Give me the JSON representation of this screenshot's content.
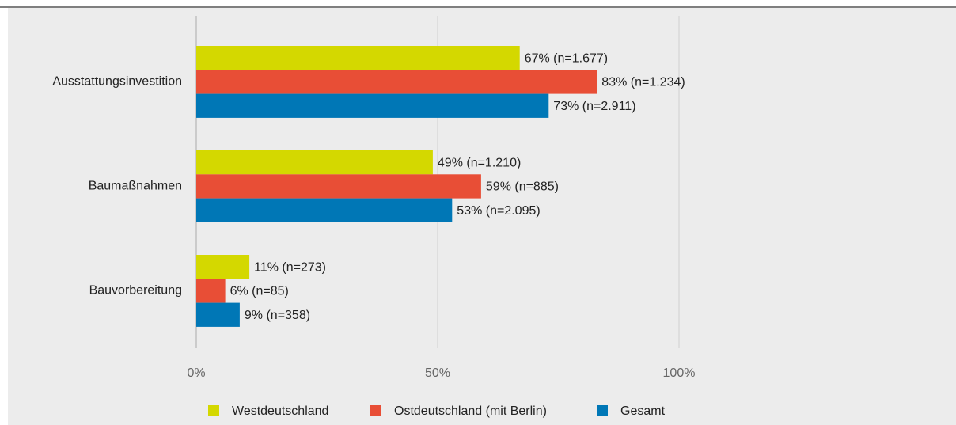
{
  "chart_data": {
    "type": "hbar",
    "categories": [
      "Ausstattungsinvestition",
      "Baumaßnahmen",
      "Bauvorbereitung"
    ],
    "series": [
      {
        "name": "Westdeutschland",
        "color": "#d4d800",
        "values": [
          67,
          49,
          11
        ],
        "value_labels": [
          "67% (n=1.677)",
          "49% (n=1.210)",
          "11% (n=273)"
        ]
      },
      {
        "name": "Ostdeutschland (mit Berlin)",
        "color": "#e84e36",
        "values": [
          83,
          59,
          6
        ],
        "value_labels": [
          "83% (n=1.234)",
          "59% (n=885)",
          "6% (n=85)"
        ]
      },
      {
        "name": "Gesamt",
        "color": "#0077b6",
        "values": [
          73,
          53,
          9
        ],
        "value_labels": [
          "73% (n=2.911)",
          "53% (n=2.095)",
          "9% (n=358)"
        ]
      }
    ],
    "xlim": [
      0,
      150
    ],
    "xticks": [
      {
        "value": 0,
        "label": "0%"
      },
      {
        "value": 50,
        "label": "50%"
      },
      {
        "value": 100,
        "label": "100%"
      }
    ],
    "grid": true
  }
}
